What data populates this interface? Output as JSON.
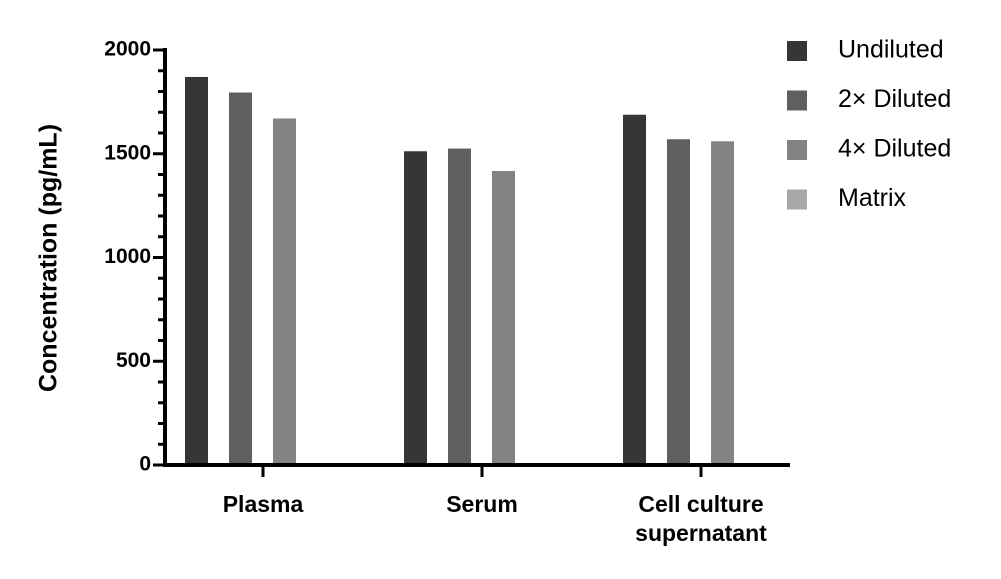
{
  "chart_data": {
    "type": "bar",
    "title": "",
    "xlabel": "",
    "ylabel": "Concentration (pg/mL)",
    "ylim": [
      0,
      2000
    ],
    "yticks": [
      "0",
      "500",
      "1000",
      "1500",
      "2000"
    ],
    "categories": [
      [
        "Plasma"
      ],
      [
        "Serum"
      ],
      [
        "Cell culture",
        "supernatant"
      ]
    ],
    "series": [
      {
        "name": "Undiluted",
        "color": "#363636",
        "values": [
          1870,
          1512,
          1688
        ]
      },
      {
        "name": "2× Diluted",
        "color": "#5f5f5f",
        "values": [
          1795,
          1525,
          1570
        ]
      },
      {
        "name": "4× Diluted",
        "color": "#838383",
        "values": [
          1670,
          1417,
          1560
        ]
      },
      {
        "name": "Matrix",
        "color": "#a9a9a9",
        "values": [
          5,
          5,
          5
        ]
      }
    ],
    "legend_position": "top-right",
    "grid": false
  }
}
